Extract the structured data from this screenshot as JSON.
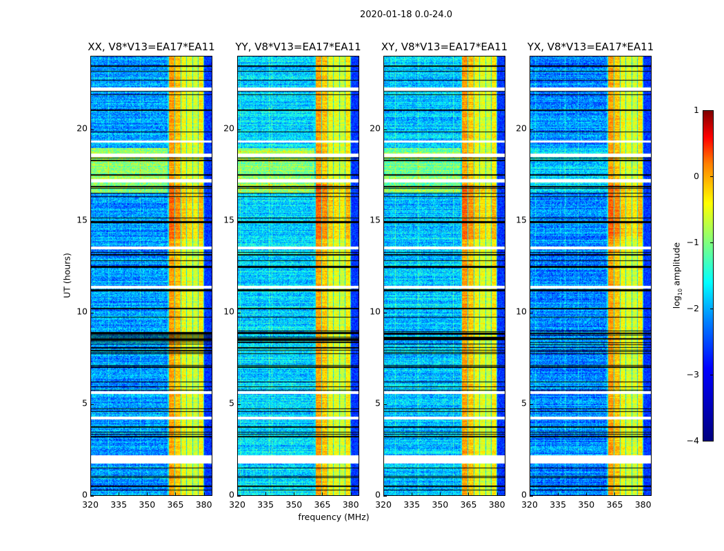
{
  "suptitle": "2020-01-18 0.0-24.0",
  "xlabel": "frequency (MHz)",
  "ylabel": "UT (hours)",
  "colorbar": {
    "label_pre": "log",
    "label_sub": "10",
    "label_post": " amplitude",
    "ticks": [
      "1",
      "0",
      "−1",
      "−2",
      "−3",
      "−4"
    ],
    "tick_values": [
      1,
      0,
      -1,
      -2,
      -3,
      -4
    ],
    "range": [
      -4,
      1
    ],
    "colormap": "jet"
  },
  "chart_data": {
    "type": "heatmap",
    "title": "2020-01-18 0.0-24.0",
    "xlabel": "frequency (MHz)",
    "ylabel": "UT (hours)",
    "xlim": [
      320,
      384.5
    ],
    "ylim": [
      0,
      24
    ],
    "xticks": [
      "320",
      "335",
      "350",
      "365",
      "380"
    ],
    "xtick_values": [
      320,
      335,
      350,
      365,
      380
    ],
    "yticks": [
      "0",
      "5",
      "10",
      "15",
      "20"
    ],
    "ytick_values": [
      0,
      5,
      10,
      15,
      20
    ],
    "value_label": "log10 amplitude",
    "value_range": [
      -4,
      1
    ],
    "high_band_channels": [
      [
        361.5,
        364.5,
        -0.4
      ],
      [
        364.8,
        368,
        -0.6
      ],
      [
        368.4,
        371,
        -0.9
      ],
      [
        371.4,
        374.2,
        -1.0
      ],
      [
        374.6,
        377.2,
        -1.1
      ],
      [
        377.6,
        380,
        -0.8
      ]
    ],
    "flagged_hours": [
      [
        1.75,
        2.2
      ],
      [
        4.15,
        4.3
      ],
      [
        5.55,
        5.7
      ],
      [
        11.3,
        11.45
      ],
      [
        13.45,
        13.6
      ],
      [
        17.1,
        17.3
      ],
      [
        18.5,
        18.7
      ],
      [
        19.3,
        19.4
      ],
      [
        22.1,
        22.3
      ]
    ],
    "panels": [
      {
        "title": "XX, V8*V13=EA17*EA11",
        "low_band_level": -2.6,
        "bright_hours": [
          16.5,
          19.0
        ],
        "bright_level": -1.4
      },
      {
        "title": "YY, V8*V13=EA17*EA11",
        "low_band_level": -2.3,
        "bright_hours": [
          16.5,
          19.0
        ],
        "bright_level": -1.4
      },
      {
        "title": "XY, V8*V13=EA17*EA11",
        "low_band_level": -2.4,
        "bright_hours": [
          16.5,
          19.0
        ],
        "bright_level": -1.5
      },
      {
        "title": "YX, V8*V13=EA17*EA11",
        "low_band_level": -2.7,
        "bright_hours": [
          16.5,
          19.0
        ],
        "bright_level": -2.3
      }
    ]
  }
}
